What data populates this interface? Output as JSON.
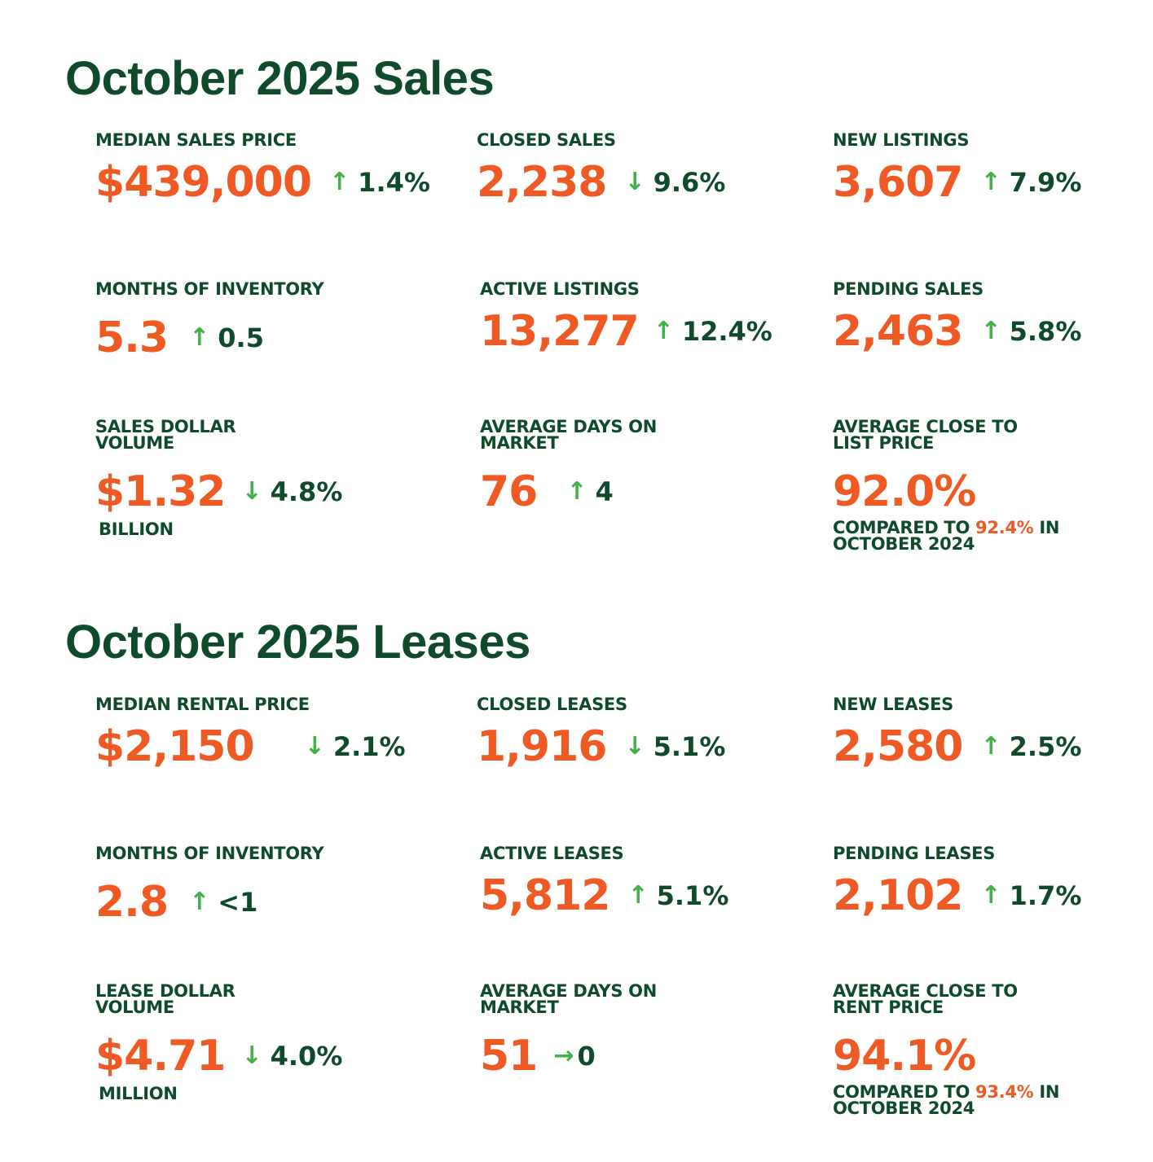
{
  "sales": {
    "title": "October 2025 Sales",
    "median_price": {
      "label": "MEDIAN SALES PRICE",
      "value": "$439,000",
      "change": "1.4%",
      "arrow": "↑"
    },
    "closed": {
      "label": "CLOSED SALES",
      "value": "2,238",
      "change": "9.6%",
      "arrow": "↓"
    },
    "new_listings": {
      "label": "NEW LISTINGS",
      "value": "3,607",
      "change": "7.9%",
      "arrow": "↑"
    },
    "months_inventory": {
      "label": "MONTHS OF INVENTORY",
      "value": "5.3",
      "change": "0.5",
      "arrow": "↑"
    },
    "active": {
      "label": "ACTIVE LISTINGS",
      "value": "13,277",
      "change": "12.4%",
      "arrow": "↑"
    },
    "pending": {
      "label": "PENDING SALES",
      "value": "2,463",
      "change": "5.8%",
      "arrow": "↑"
    },
    "dollar_volume": {
      "label_line1": "SALES DOLLAR",
      "label_line2": "VOLUME",
      "value": "$1.32",
      "change": "4.8%",
      "arrow": "↓",
      "unit": "BILLION"
    },
    "dom": {
      "label_line1": "AVERAGE DAYS ON",
      "label_line2": "MARKET",
      "value": "76",
      "change": "4",
      "arrow": "↑"
    },
    "close_to_list": {
      "label_line1": "AVERAGE CLOSE TO",
      "label_line2": "LIST PRICE",
      "value": "92.0%",
      "compare_prefix": "COMPARED TO",
      "compare_value": "92.4%",
      "compare_suffix": "IN",
      "compare_line2": "OCTOBER 2024"
    }
  },
  "leases": {
    "title": "October 2025 Leases",
    "median_price": {
      "label": "MEDIAN RENTAL PRICE",
      "value": "$2,150",
      "change": "2.1%",
      "arrow": "↓"
    },
    "closed": {
      "label": "CLOSED LEASES",
      "value": "1,916",
      "change": "5.1%",
      "arrow": "↓"
    },
    "new_leases": {
      "label": "NEW LEASES",
      "value": "2,580",
      "change": "2.5%",
      "arrow": "↑"
    },
    "months_inventory": {
      "label": "MONTHS OF INVENTORY",
      "value": "2.8",
      "change": "<1",
      "arrow": "↑"
    },
    "active": {
      "label": "ACTIVE LEASES",
      "value": "5,812",
      "change": "5.1%",
      "arrow": "↑"
    },
    "pending": {
      "label": "PENDING LEASES",
      "value": "2,102",
      "change": "1.7%",
      "arrow": "↑"
    },
    "dollar_volume": {
      "label_line1": "LEASE DOLLAR",
      "label_line2": "VOLUME",
      "value": "$4.71",
      "change": "4.0%",
      "arrow": "↓",
      "unit": "MILLION"
    },
    "dom": {
      "label_line1": "AVERAGE DAYS ON",
      "label_line2": "MARKET",
      "value": "51",
      "change": "0",
      "arrow": "→"
    },
    "close_to_rent": {
      "label_line1": "AVERAGE CLOSE TO",
      "label_line2": "RENT PRICE",
      "value": "94.1%",
      "compare_prefix": "COMPARED TO",
      "compare_value": "93.4%",
      "compare_suffix": "IN",
      "compare_line2": "OCTOBER 2024"
    }
  },
  "colors": {
    "title_green": "#0f4a2b",
    "value_orange": "#ef5a24",
    "arrow_green": "#41b24a"
  }
}
